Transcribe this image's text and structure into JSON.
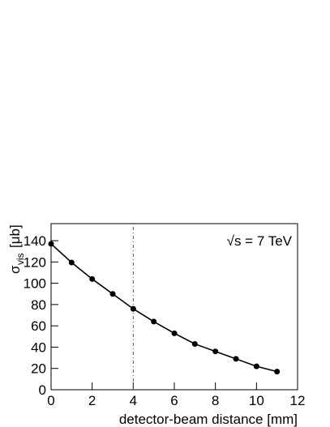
{
  "chart_data": {
    "type": "line",
    "xlabel": "detector-beam distance [mm]",
    "ylabel_symbol": "σ",
    "ylabel_subscript": "vis",
    "ylabel_unit": "[μb]",
    "annotation": "√s = 7 TeV",
    "vline": 4,
    "x": [
      0,
      1,
      2,
      3,
      4,
      5,
      6,
      7,
      8,
      9,
      10,
      11
    ],
    "series": [
      {
        "color": "#000000",
        "values": [
          137,
          119.5,
          104,
          90,
          76,
          64,
          53,
          43,
          36,
          29,
          22,
          17
        ]
      }
    ],
    "xlim": [
      0,
      12
    ],
    "xticks": [
      0,
      2,
      4,
      6,
      8,
      10,
      12
    ],
    "ylim": [
      0,
      156
    ],
    "yticks": [
      0,
      20,
      40,
      60,
      80,
      100,
      120,
      140
    ]
  }
}
